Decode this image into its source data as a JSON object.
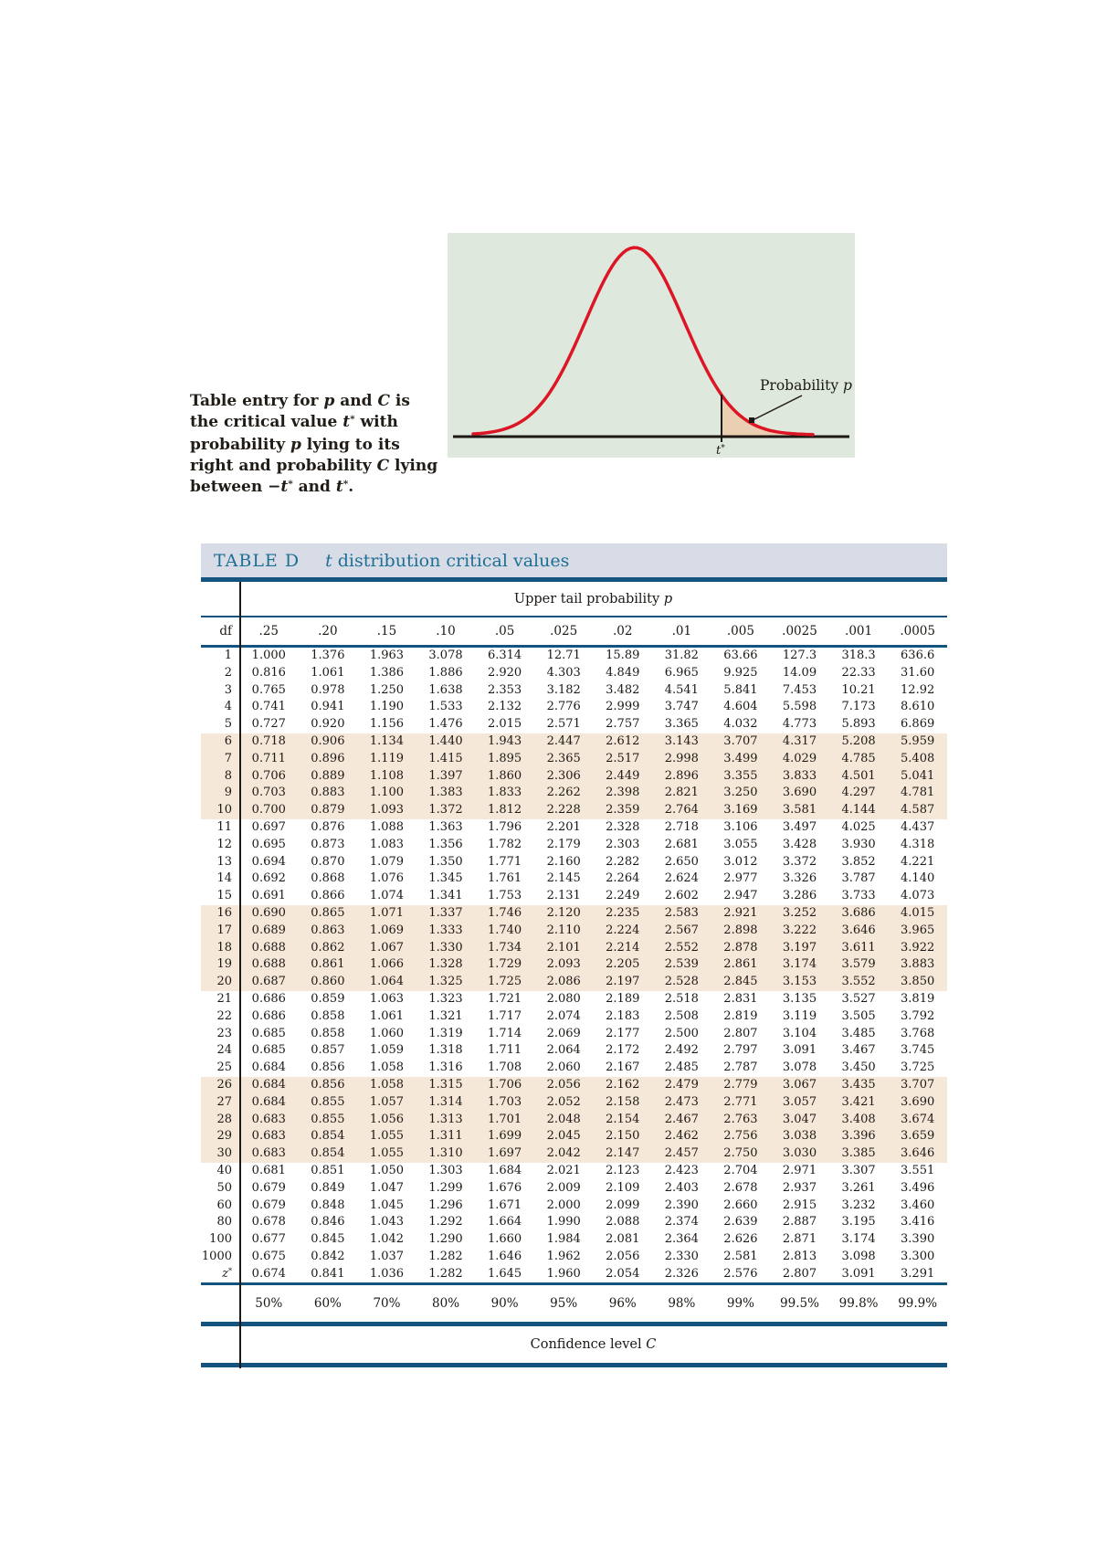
{
  "graphic": {
    "probability_label": "Probability ",
    "probability_p": "p",
    "t_label": "t",
    "t_star": "*"
  },
  "caption": {
    "lines": [
      [
        {
          "t": "Table entry for "
        },
        {
          "t": "p",
          "i": 1
        },
        {
          "t": " and "
        },
        {
          "t": "C",
          "i": 1
        },
        {
          "t": " is"
        }
      ],
      [
        {
          "t": "the critical value "
        },
        {
          "t": "t",
          "i": 1
        },
        {
          "t": "*",
          "s": 1
        },
        {
          "t": " with"
        }
      ],
      [
        {
          "t": "probability "
        },
        {
          "t": "p",
          "i": 1
        },
        {
          "t": " lying to its"
        }
      ],
      [
        {
          "t": "right and probability "
        },
        {
          "t": "C",
          "i": 1
        },
        {
          "t": " lying"
        }
      ],
      [
        {
          "t": "between −"
        },
        {
          "t": "t",
          "i": 1
        },
        {
          "t": "*",
          "s": 1
        },
        {
          "t": " and "
        },
        {
          "t": "t",
          "i": 1
        },
        {
          "t": "*",
          "s": 1
        },
        {
          "t": "."
        }
      ]
    ]
  },
  "table": {
    "title_label": "TABLE D",
    "title_t": "t",
    "title_rest": " distribution critical values",
    "upper_tail_pre": "Upper tail probability ",
    "upper_tail_p": "p",
    "df_header": "df",
    "p_headers": [
      ".25",
      ".20",
      ".15",
      ".10",
      ".05",
      ".025",
      ".02",
      ".01",
      ".005",
      ".0025",
      ".001",
      ".0005"
    ],
    "rows": [
      {
        "df": "1",
        "values": [
          "1.000",
          "1.376",
          "1.963",
          "3.078",
          "6.314",
          "12.71",
          "15.89",
          "31.82",
          "63.66",
          "127.3",
          "318.3",
          "636.6"
        ]
      },
      {
        "df": "2",
        "values": [
          "0.816",
          "1.061",
          "1.386",
          "1.886",
          "2.920",
          "4.303",
          "4.849",
          "6.965",
          "9.925",
          "14.09",
          "22.33",
          "31.60"
        ]
      },
      {
        "df": "3",
        "values": [
          "0.765",
          "0.978",
          "1.250",
          "1.638",
          "2.353",
          "3.182",
          "3.482",
          "4.541",
          "5.841",
          "7.453",
          "10.21",
          "12.92"
        ]
      },
      {
        "df": "4",
        "values": [
          "0.741",
          "0.941",
          "1.190",
          "1.533",
          "2.132",
          "2.776",
          "2.999",
          "3.747",
          "4.604",
          "5.598",
          "7.173",
          "8.610"
        ]
      },
      {
        "df": "5",
        "values": [
          "0.727",
          "0.920",
          "1.156",
          "1.476",
          "2.015",
          "2.571",
          "2.757",
          "3.365",
          "4.032",
          "4.773",
          "5.893",
          "6.869"
        ]
      },
      {
        "df": "6",
        "values": [
          "0.718",
          "0.906",
          "1.134",
          "1.440",
          "1.943",
          "2.447",
          "2.612",
          "3.143",
          "3.707",
          "4.317",
          "5.208",
          "5.959"
        ]
      },
      {
        "df": "7",
        "values": [
          "0.711",
          "0.896",
          "1.119",
          "1.415",
          "1.895",
          "2.365",
          "2.517",
          "2.998",
          "3.499",
          "4.029",
          "4.785",
          "5.408"
        ]
      },
      {
        "df": "8",
        "values": [
          "0.706",
          "0.889",
          "1.108",
          "1.397",
          "1.860",
          "2.306",
          "2.449",
          "2.896",
          "3.355",
          "3.833",
          "4.501",
          "5.041"
        ]
      },
      {
        "df": "9",
        "values": [
          "0.703",
          "0.883",
          "1.100",
          "1.383",
          "1.833",
          "2.262",
          "2.398",
          "2.821",
          "3.250",
          "3.690",
          "4.297",
          "4.781"
        ]
      },
      {
        "df": "10",
        "values": [
          "0.700",
          "0.879",
          "1.093",
          "1.372",
          "1.812",
          "2.228",
          "2.359",
          "2.764",
          "3.169",
          "3.581",
          "4.144",
          "4.587"
        ]
      },
      {
        "df": "11",
        "values": [
          "0.697",
          "0.876",
          "1.088",
          "1.363",
          "1.796",
          "2.201",
          "2.328",
          "2.718",
          "3.106",
          "3.497",
          "4.025",
          "4.437"
        ]
      },
      {
        "df": "12",
        "values": [
          "0.695",
          "0.873",
          "1.083",
          "1.356",
          "1.782",
          "2.179",
          "2.303",
          "2.681",
          "3.055",
          "3.428",
          "3.930",
          "4.318"
        ]
      },
      {
        "df": "13",
        "values": [
          "0.694",
          "0.870",
          "1.079",
          "1.350",
          "1.771",
          "2.160",
          "2.282",
          "2.650",
          "3.012",
          "3.372",
          "3.852",
          "4.221"
        ]
      },
      {
        "df": "14",
        "values": [
          "0.692",
          "0.868",
          "1.076",
          "1.345",
          "1.761",
          "2.145",
          "2.264",
          "2.624",
          "2.977",
          "3.326",
          "3.787",
          "4.140"
        ]
      },
      {
        "df": "15",
        "values": [
          "0.691",
          "0.866",
          "1.074",
          "1.341",
          "1.753",
          "2.131",
          "2.249",
          "2.602",
          "2.947",
          "3.286",
          "3.733",
          "4.073"
        ]
      },
      {
        "df": "16",
        "values": [
          "0.690",
          "0.865",
          "1.071",
          "1.337",
          "1.746",
          "2.120",
          "2.235",
          "2.583",
          "2.921",
          "3.252",
          "3.686",
          "4.015"
        ]
      },
      {
        "df": "17",
        "values": [
          "0.689",
          "0.863",
          "1.069",
          "1.333",
          "1.740",
          "2.110",
          "2.224",
          "2.567",
          "2.898",
          "3.222",
          "3.646",
          "3.965"
        ]
      },
      {
        "df": "18",
        "values": [
          "0.688",
          "0.862",
          "1.067",
          "1.330",
          "1.734",
          "2.101",
          "2.214",
          "2.552",
          "2.878",
          "3.197",
          "3.611",
          "3.922"
        ]
      },
      {
        "df": "19",
        "values": [
          "0.688",
          "0.861",
          "1.066",
          "1.328",
          "1.729",
          "2.093",
          "2.205",
          "2.539",
          "2.861",
          "3.174",
          "3.579",
          "3.883"
        ]
      },
      {
        "df": "20",
        "values": [
          "0.687",
          "0.860",
          "1.064",
          "1.325",
          "1.725",
          "2.086",
          "2.197",
          "2.528",
          "2.845",
          "3.153",
          "3.552",
          "3.850"
        ]
      },
      {
        "df": "21",
        "values": [
          "0.686",
          "0.859",
          "1.063",
          "1.323",
          "1.721",
          "2.080",
          "2.189",
          "2.518",
          "2.831",
          "3.135",
          "3.527",
          "3.819"
        ]
      },
      {
        "df": "22",
        "values": [
          "0.686",
          "0.858",
          "1.061",
          "1.321",
          "1.717",
          "2.074",
          "2.183",
          "2.508",
          "2.819",
          "3.119",
          "3.505",
          "3.792"
        ]
      },
      {
        "df": "23",
        "values": [
          "0.685",
          "0.858",
          "1.060",
          "1.319",
          "1.714",
          "2.069",
          "2.177",
          "2.500",
          "2.807",
          "3.104",
          "3.485",
          "3.768"
        ]
      },
      {
        "df": "24",
        "values": [
          "0.685",
          "0.857",
          "1.059",
          "1.318",
          "1.711",
          "2.064",
          "2.172",
          "2.492",
          "2.797",
          "3.091",
          "3.467",
          "3.745"
        ]
      },
      {
        "df": "25",
        "values": [
          "0.684",
          "0.856",
          "1.058",
          "1.316",
          "1.708",
          "2.060",
          "2.167",
          "2.485",
          "2.787",
          "3.078",
          "3.450",
          "3.725"
        ]
      },
      {
        "df": "26",
        "values": [
          "0.684",
          "0.856",
          "1.058",
          "1.315",
          "1.706",
          "2.056",
          "2.162",
          "2.479",
          "2.779",
          "3.067",
          "3.435",
          "3.707"
        ]
      },
      {
        "df": "27",
        "values": [
          "0.684",
          "0.855",
          "1.057",
          "1.314",
          "1.703",
          "2.052",
          "2.158",
          "2.473",
          "2.771",
          "3.057",
          "3.421",
          "3.690"
        ]
      },
      {
        "df": "28",
        "values": [
          "0.683",
          "0.855",
          "1.056",
          "1.313",
          "1.701",
          "2.048",
          "2.154",
          "2.467",
          "2.763",
          "3.047",
          "3.408",
          "3.674"
        ]
      },
      {
        "df": "29",
        "values": [
          "0.683",
          "0.854",
          "1.055",
          "1.311",
          "1.699",
          "2.045",
          "2.150",
          "2.462",
          "2.756",
          "3.038",
          "3.396",
          "3.659"
        ]
      },
      {
        "df": "30",
        "values": [
          "0.683",
          "0.854",
          "1.055",
          "1.310",
          "1.697",
          "2.042",
          "2.147",
          "2.457",
          "2.750",
          "3.030",
          "3.385",
          "3.646"
        ]
      },
      {
        "df": "40",
        "values": [
          "0.681",
          "0.851",
          "1.050",
          "1.303",
          "1.684",
          "2.021",
          "2.123",
          "2.423",
          "2.704",
          "2.971",
          "3.307",
          "3.551"
        ]
      },
      {
        "df": "50",
        "values": [
          "0.679",
          "0.849",
          "1.047",
          "1.299",
          "1.676",
          "2.009",
          "2.109",
          "2.403",
          "2.678",
          "2.937",
          "3.261",
          "3.496"
        ]
      },
      {
        "df": "60",
        "values": [
          "0.679",
          "0.848",
          "1.045",
          "1.296",
          "1.671",
          "2.000",
          "2.099",
          "2.390",
          "2.660",
          "2.915",
          "3.232",
          "3.460"
        ]
      },
      {
        "df": "80",
        "values": [
          "0.678",
          "0.846",
          "1.043",
          "1.292",
          "1.664",
          "1.990",
          "2.088",
          "2.374",
          "2.639",
          "2.887",
          "3.195",
          "3.416"
        ]
      },
      {
        "df": "100",
        "values": [
          "0.677",
          "0.845",
          "1.042",
          "1.290",
          "1.660",
          "1.984",
          "2.081",
          "2.364",
          "2.626",
          "2.871",
          "3.174",
          "3.390"
        ]
      },
      {
        "df": "1000",
        "values": [
          "0.675",
          "0.842",
          "1.037",
          "1.282",
          "1.646",
          "1.962",
          "2.056",
          "2.330",
          "2.581",
          "2.813",
          "3.098",
          "3.300"
        ]
      },
      {
        "df": "z*",
        "values": [
          "0.674",
          "0.841",
          "1.036",
          "1.282",
          "1.645",
          "1.960",
          "2.054",
          "2.326",
          "2.576",
          "2.807",
          "3.091",
          "3.291"
        ]
      }
    ],
    "confidence_values": [
      "50%",
      "60%",
      "70%",
      "80%",
      "90%",
      "95%",
      "96%",
      "98%",
      "99%",
      "99.5%",
      "99.8%",
      "99.9%"
    ],
    "confidence_pre": "Confidence level ",
    "confidence_c": "C"
  },
  "colors": {
    "rule_blue": "#14537d",
    "title_blue": "#1e6f94",
    "title_bar_bg": "#d8dce6",
    "band_shading": "#f6e8d9",
    "figure_bg": "#dee8dd",
    "tail_fill": "#eacfb2",
    "curve_red": "#dd1626"
  }
}
